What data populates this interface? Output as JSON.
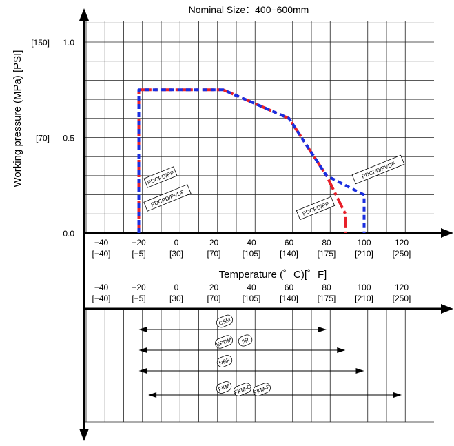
{
  "chart_data": [
    {
      "type": "line",
      "title": "Nominal Size：400−600mm",
      "xlabel": "Temperature (゜C)[゜F]",
      "ylabel": "Working pressure (MPa) [PSI]",
      "xlim": [
        -60,
        130
      ],
      "ylim": [
        0.0,
        1.1
      ],
      "grid": true,
      "x_ticks": [
        {
          "c": "−40",
          "f": "[−40]",
          "v": -40
        },
        {
          "c": "−20",
          "f": "[−5]",
          "v": -20
        },
        {
          "c": "0",
          "f": "[30]",
          "v": 0
        },
        {
          "c": "20",
          "f": "[70]",
          "v": 20
        },
        {
          "c": "40",
          "f": "[105]",
          "v": 40
        },
        {
          "c": "60",
          "f": "[140]",
          "v": 60
        },
        {
          "c": "80",
          "f": "[175]",
          "v": 80
        },
        {
          "c": "100",
          "f": "[210]",
          "v": 100
        },
        {
          "c": "120",
          "f": "[250]",
          "v": 120
        }
      ],
      "y_ticks": [
        {
          "label": "1.0",
          "psi": "[150]",
          "v": 1.0
        },
        {
          "label": "0.5",
          "psi": "[70]",
          "v": 0.5
        },
        {
          "label": "0.0",
          "psi": "",
          "v": 0.0
        }
      ],
      "series": [
        {
          "name": "PDCPD/PP",
          "color": "#e8202a",
          "dash": "dash-dot",
          "points": [
            [
              -20,
              0.0
            ],
            [
              -20,
              0.75
            ],
            [
              25,
              0.75
            ],
            [
              60,
              0.6
            ],
            [
              80,
              0.3
            ],
            [
              90,
              0.1
            ],
            [
              90,
              0.0
            ]
          ]
        },
        {
          "name": "PDCPD/PVDF",
          "color": "#1a2ee0",
          "dash": "dashed",
          "points": [
            [
              -20,
              0.0
            ],
            [
              -20,
              0.75
            ],
            [
              25,
              0.75
            ],
            [
              60,
              0.6
            ],
            [
              80,
              0.3
            ],
            [
              100,
              0.2
            ],
            [
              100,
              0.0
            ]
          ]
        }
      ],
      "annotations": [
        "PDCPD/PP",
        "PDCPD/PVDF",
        "PDCPD/PP",
        "PDCPD/PVDF"
      ]
    },
    {
      "type": "range",
      "xlim": [
        -60,
        130
      ],
      "x_ticks": [
        {
          "c": "−40",
          "f": "[−40]",
          "v": -40
        },
        {
          "c": "−20",
          "f": "[−5]",
          "v": -20
        },
        {
          "c": "0",
          "f": "[30]",
          "v": 0
        },
        {
          "c": "20",
          "f": "[70]",
          "v": 20
        },
        {
          "c": "40",
          "f": "[105]",
          "v": 40
        },
        {
          "c": "60",
          "f": "[140]",
          "v": 60
        },
        {
          "c": "80",
          "f": "[175]",
          "v": 80
        },
        {
          "c": "100",
          "f": "[210]",
          "v": 100
        },
        {
          "c": "120",
          "f": "[250]",
          "v": 120
        }
      ],
      "ranges": [
        {
          "labels": [
            "CSM"
          ],
          "min": -20,
          "max": 80
        },
        {
          "labels": [
            "EPDM",
            "IIR"
          ],
          "min": -20,
          "max": 90
        },
        {
          "labels": [
            "NBR"
          ],
          "min": -20,
          "max": 100
        },
        {
          "labels": [
            "FKM",
            "FKM-C",
            "FKM-P"
          ],
          "min": -15,
          "max": 120
        }
      ]
    }
  ]
}
